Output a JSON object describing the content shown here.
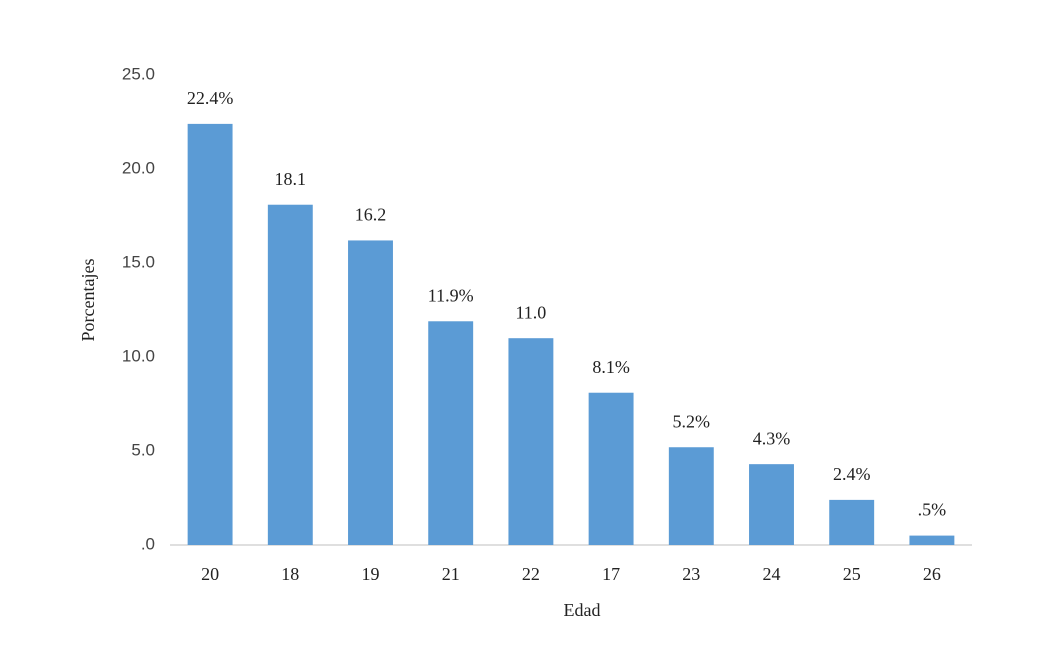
{
  "chart_data": {
    "type": "bar",
    "categories": [
      "20",
      "18",
      "19",
      "21",
      "22",
      "17",
      "23",
      "24",
      "25",
      "26"
    ],
    "values": [
      22.4,
      18.1,
      16.2,
      11.9,
      11.0,
      8.1,
      5.2,
      4.3,
      2.4,
      0.5
    ],
    "value_labels": [
      "22.4%",
      "18.1",
      "16.2",
      "11.9%",
      "11.0",
      "8.1%",
      "5.2%",
      "4.3%",
      "2.4%",
      ".5%"
    ],
    "color": "#5b9bd5",
    "ylim": [
      0,
      25
    ],
    "yticks": [
      {
        "value": 0,
        "label": ".0"
      },
      {
        "value": 5,
        "label": "5.0"
      },
      {
        "value": 10,
        "label": "10.0"
      },
      {
        "value": 15,
        "label": "15.0"
      },
      {
        "value": 20,
        "label": "20.0"
      },
      {
        "value": 25,
        "label": "25.0"
      }
    ],
    "x_label": "Edad",
    "y_label": "Porcentajes",
    "grid": false
  }
}
